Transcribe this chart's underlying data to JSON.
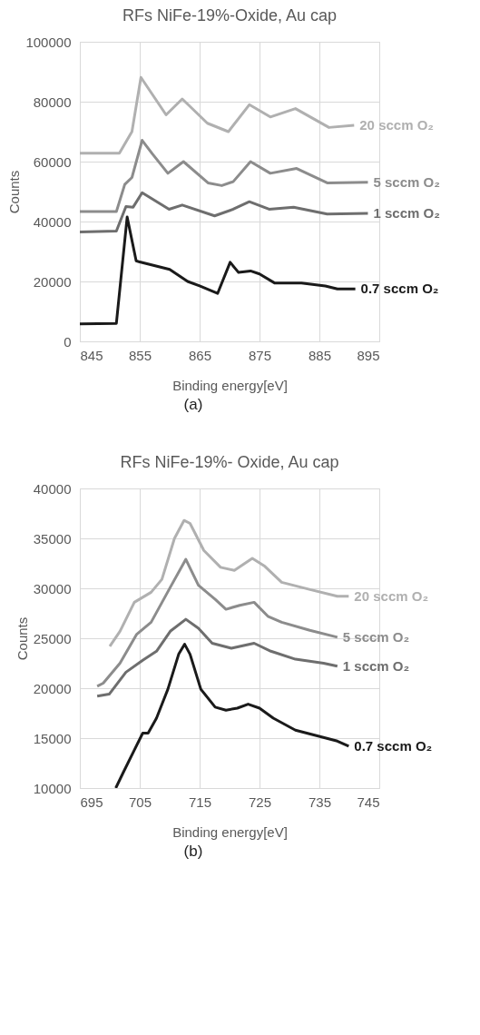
{
  "chart_data": [
    {
      "type": "line",
      "title": "RFs NiFe-19%-Oxide, Au cap",
      "xlabel": "Binding energy[eV]",
      "ylabel": "Counts",
      "xlim": [
        845,
        895
      ],
      "xticks": [
        845,
        855,
        865,
        875,
        885,
        895
      ],
      "ylim": [
        0,
        100000
      ],
      "yticks": [
        0,
        20000,
        40000,
        60000,
        80000,
        100000
      ],
      "grid": true,
      "annotations": [
        "(a)"
      ],
      "series": [
        {
          "name": "20 sccm O₂",
          "color": "#b0b0b0",
          "x": [
            845,
            851.6,
            853.7,
            855.2,
            859.4,
            862.1,
            866.3,
            869.8,
            873.3,
            876.8,
            881,
            886.6,
            890.8
          ],
          "values": [
            62800,
            62800,
            70000,
            88100,
            75600,
            80900,
            72800,
            70000,
            79000,
            74900,
            77700,
            71400,
            72100
          ]
        },
        {
          "name": "5 sccm O₂",
          "color": "#8c8c8c",
          "x": [
            845,
            851.1,
            852.5,
            853.7,
            855.4,
            857.1,
            859.7,
            862.3,
            866.4,
            868.7,
            870.6,
            873.5,
            876.8,
            881.2,
            886.3,
            893.1
          ],
          "values": [
            43300,
            43300,
            52400,
            54700,
            67100,
            62600,
            56100,
            60000,
            52900,
            52000,
            53300,
            60000,
            56100,
            57700,
            52900,
            53100
          ]
        },
        {
          "name": "1 sccm O₂",
          "color": "#6e6e6e",
          "x": [
            845,
            851.1,
            852.7,
            853.9,
            855.4,
            859.9,
            862.1,
            867.5,
            870.6,
            873.3,
            876.6,
            880.7,
            886.3,
            893.1
          ],
          "values": [
            36500,
            36800,
            45000,
            44800,
            49600,
            44100,
            45500,
            41900,
            44100,
            46600,
            44100,
            44800,
            42500,
            42700
          ]
        },
        {
          "name": "0.7 sccm O₂",
          "color": "#1a1a1a",
          "x": [
            845,
            851.1,
            852.9,
            854.4,
            855,
            860,
            863,
            865,
            868,
            870.1,
            871.5,
            873.5,
            875,
            877.5,
            882,
            886,
            888,
            891
          ],
          "values": [
            5800,
            6000,
            41500,
            26900,
            26500,
            24000,
            20000,
            18500,
            16000,
            26400,
            23000,
            23500,
            22500,
            19500,
            19500,
            18500,
            17500,
            17500
          ]
        }
      ]
    },
    {
      "type": "line",
      "title": "RFs NiFe-19%- Oxide, Au cap",
      "xlabel": "Binding energy[eV]",
      "ylabel": "Counts",
      "xlim": [
        695,
        745
      ],
      "xticks": [
        695,
        705,
        715,
        725,
        735,
        745
      ],
      "ylim": [
        10000,
        40000
      ],
      "yticks": [
        10000,
        15000,
        20000,
        25000,
        30000,
        35000,
        40000
      ],
      "grid": true,
      "annotations": [
        "(b)"
      ],
      "series": [
        {
          "name": "20 sccm O₂",
          "color": "#b0b0b0",
          "x": [
            700.0,
            701.7,
            704.1,
            706.9,
            708.7,
            710.8,
            712.4,
            713.4,
            715.7,
            718.5,
            720.8,
            723.8,
            725.9,
            728.7,
            733.3,
            738.0,
            739.9
          ],
          "values": [
            24200,
            25700,
            28600,
            29600,
            30900,
            35000,
            36800,
            36500,
            33800,
            32100,
            31800,
            33000,
            32200,
            30600,
            29900,
            29200,
            29200
          ]
        },
        {
          "name": "5 sccm O₂",
          "color": "#8c8c8c",
          "x": [
            697.9,
            698.9,
            701.7,
            704.5,
            706.9,
            710.1,
            712.7,
            714.8,
            717.6,
            719.4,
            721.7,
            724.1,
            726.4,
            728.7,
            733.4,
            738.0
          ],
          "values": [
            20200,
            20500,
            22500,
            25400,
            26600,
            30100,
            32900,
            30300,
            28900,
            27900,
            28300,
            28600,
            27200,
            26600,
            25800,
            25100
          ]
        },
        {
          "name": "1 sccm O₂",
          "color": "#6e6e6e",
          "x": [
            697.9,
            699.9,
            702.7,
            705.5,
            707.8,
            710.1,
            712.7,
            714.8,
            717.1,
            720.3,
            724.1,
            726.9,
            731.0,
            735.7,
            738.0
          ],
          "values": [
            19200,
            19400,
            21600,
            22800,
            23700,
            25700,
            26900,
            26000,
            24500,
            24000,
            24500,
            23700,
            22900,
            22500,
            22200
          ]
        },
        {
          "name": "0.7 sccm O₂",
          "color": "#1a1a1a",
          "x": [
            701.0,
            702.2,
            704.1,
            705.5,
            706.4,
            707.8,
            709.7,
            711.5,
            712.5,
            713.4,
            715.2,
            717.6,
            719.4,
            721.3,
            723.1,
            725.0,
            727.3,
            731.0,
            734.8,
            738.0,
            739.9
          ],
          "values": [
            10000,
            11500,
            13800,
            15500,
            15500,
            17000,
            19900,
            23400,
            24400,
            23400,
            19900,
            18100,
            17800,
            18000,
            18400,
            18000,
            17000,
            15800,
            15200,
            14700,
            14200
          ]
        }
      ]
    }
  ]
}
